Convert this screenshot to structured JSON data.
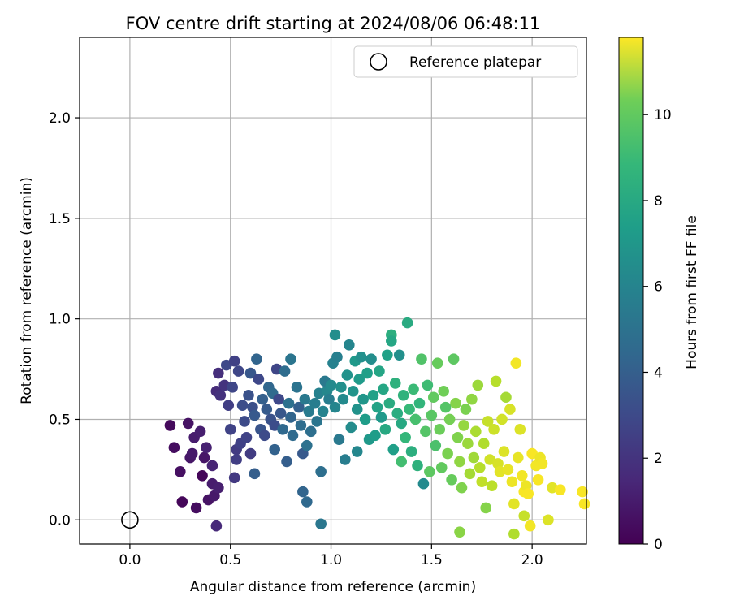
{
  "chart_data": {
    "type": "scatter",
    "title": "FOV centre drift starting at 2024/08/06 06:48:11",
    "xlabel": "Angular distance from reference (arcmin)",
    "ylabel": "Rotation from reference (arcmin)",
    "xlim": [
      -0.25,
      2.27
    ],
    "ylim": [
      -0.12,
      2.4
    ],
    "xticks": [
      "0.0",
      "0.5",
      "1.0",
      "1.5",
      "2.0"
    ],
    "yticks": [
      "0.0",
      "0.5",
      "1.0",
      "1.5",
      "2.0"
    ],
    "grid": true,
    "legend": {
      "position": "top-right",
      "entries": [
        "Reference platepar"
      ]
    },
    "colorbar": {
      "label": "Hours from first FF file",
      "min": 0,
      "max": 11.8,
      "ticks": [
        "0",
        "2",
        "4",
        "6",
        "8",
        "10"
      ],
      "colormap": "viridis"
    },
    "reference_point": {
      "x": 0.0,
      "y": 0.0
    },
    "points": [
      [
        0.2,
        0.47,
        0.3
      ],
      [
        0.22,
        0.36,
        0.4
      ],
      [
        0.25,
        0.24,
        0.5
      ],
      [
        0.26,
        0.09,
        0.2
      ],
      [
        0.29,
        0.48,
        0.6
      ],
      [
        0.3,
        0.31,
        0.7
      ],
      [
        0.31,
        0.33,
        0.8
      ],
      [
        0.32,
        0.41,
        0.9
      ],
      [
        0.33,
        0.06,
        0.4
      ],
      [
        0.35,
        0.44,
        1.0
      ],
      [
        0.36,
        0.22,
        0.2
      ],
      [
        0.37,
        0.31,
        0.7
      ],
      [
        0.38,
        0.36,
        1.1
      ],
      [
        0.39,
        0.1,
        0.6
      ],
      [
        0.41,
        0.27,
        1.2
      ],
      [
        0.41,
        0.18,
        0.9
      ],
      [
        0.42,
        0.12,
        0.8
      ],
      [
        0.43,
        0.64,
        1.5
      ],
      [
        0.43,
        -0.03,
        1.4
      ],
      [
        0.44,
        0.16,
        1.0
      ],
      [
        0.44,
        0.73,
        1.6
      ],
      [
        0.45,
        0.62,
        1.7
      ],
      [
        0.47,
        0.67,
        1.8
      ],
      [
        0.48,
        0.77,
        2.6
      ],
      [
        0.49,
        0.57,
        2.2
      ],
      [
        0.5,
        0.45,
        2.4
      ],
      [
        0.51,
        0.66,
        2.5
      ],
      [
        0.52,
        0.21,
        2.0
      ],
      [
        0.52,
        0.79,
        2.3
      ],
      [
        0.53,
        0.35,
        2.1
      ],
      [
        0.53,
        0.3,
        2.2
      ],
      [
        0.54,
        0.74,
        2.5
      ],
      [
        0.55,
        0.38,
        2.3
      ],
      [
        0.56,
        0.57,
        2.8
      ],
      [
        0.57,
        0.49,
        2.7
      ],
      [
        0.58,
        0.41,
        2.4
      ],
      [
        0.59,
        0.62,
        3.0
      ],
      [
        0.6,
        0.33,
        2.1
      ],
      [
        0.6,
        0.73,
        3.2
      ],
      [
        0.61,
        0.56,
        2.9
      ],
      [
        0.62,
        0.52,
        3.3
      ],
      [
        0.62,
        0.23,
        3.5
      ],
      [
        0.63,
        0.8,
        3.8
      ],
      [
        0.64,
        0.7,
        2.6
      ],
      [
        0.65,
        0.45,
        3.1
      ],
      [
        0.66,
        0.6,
        3.6
      ],
      [
        0.67,
        0.42,
        2.7
      ],
      [
        0.68,
        0.55,
        3.4
      ],
      [
        0.69,
        0.66,
        3.9
      ],
      [
        0.7,
        0.5,
        3.0
      ],
      [
        0.71,
        0.63,
        4.1
      ],
      [
        0.72,
        0.47,
        2.8
      ],
      [
        0.72,
        0.35,
        3.7
      ],
      [
        0.73,
        0.75,
        2.5
      ],
      [
        0.74,
        0.6,
        2.6
      ],
      [
        0.75,
        0.53,
        3.2
      ],
      [
        0.76,
        0.45,
        4.0
      ],
      [
        0.77,
        0.74,
        4.2
      ],
      [
        0.78,
        0.29,
        3.5
      ],
      [
        0.79,
        0.58,
        4.4
      ],
      [
        0.8,
        0.51,
        3.8
      ],
      [
        0.8,
        0.8,
        4.6
      ],
      [
        0.81,
        0.42,
        4.1
      ],
      [
        0.83,
        0.66,
        4.5
      ],
      [
        0.84,
        0.56,
        3.6
      ],
      [
        0.85,
        0.47,
        4.2
      ],
      [
        0.86,
        0.33,
        3.3
      ],
      [
        0.86,
        0.14,
        3.8
      ],
      [
        0.87,
        0.6,
        4.8
      ],
      [
        0.88,
        0.37,
        4.4
      ],
      [
        0.88,
        0.09,
        4.0
      ],
      [
        0.89,
        0.54,
        4.9
      ],
      [
        0.9,
        0.44,
        4.3
      ],
      [
        0.92,
        0.58,
        5.0
      ],
      [
        0.93,
        0.49,
        4.6
      ],
      [
        0.94,
        0.63,
        5.2
      ],
      [
        0.95,
        0.24,
        4.3
      ],
      [
        0.95,
        -0.02,
        4.7
      ],
      [
        0.96,
        0.54,
        5.3
      ],
      [
        0.97,
        0.69,
        4.8
      ],
      [
        0.98,
        0.64,
        5.5
      ],
      [
        0.99,
        0.6,
        5.0
      ],
      [
        1.0,
        0.67,
        5.6
      ],
      [
        1.01,
        0.78,
        5.2
      ],
      [
        1.02,
        0.92,
        5.8
      ],
      [
        1.02,
        0.56,
        5.4
      ],
      [
        1.03,
        0.81,
        5.1
      ],
      [
        1.04,
        0.4,
        4.8
      ],
      [
        1.05,
        0.66,
        5.9
      ],
      [
        1.06,
        0.6,
        5.6
      ],
      [
        1.07,
        0.3,
        5.0
      ],
      [
        1.08,
        0.72,
        6.0
      ],
      [
        1.09,
        0.87,
        5.4
      ],
      [
        1.1,
        0.46,
        5.7
      ],
      [
        1.11,
        0.64,
        6.1
      ],
      [
        1.12,
        0.79,
        6.3
      ],
      [
        1.13,
        0.34,
        5.5
      ],
      [
        1.13,
        0.55,
        6.0
      ],
      [
        1.14,
        0.7,
        6.4
      ],
      [
        1.15,
        0.81,
        5.9
      ],
      [
        1.16,
        0.6,
        6.2
      ],
      [
        1.17,
        0.5,
        6.5
      ],
      [
        1.18,
        0.73,
        6.6
      ],
      [
        1.19,
        0.4,
        6.3
      ],
      [
        1.2,
        0.8,
        5.8
      ],
      [
        1.21,
        0.62,
        6.7
      ],
      [
        1.22,
        0.42,
        6.5
      ],
      [
        1.23,
        0.56,
        6.8
      ],
      [
        1.24,
        0.74,
        6.9
      ],
      [
        1.25,
        0.51,
        6.3
      ],
      [
        1.26,
        0.65,
        7.0
      ],
      [
        1.27,
        0.45,
        7.1
      ],
      [
        1.28,
        0.82,
        6.7
      ],
      [
        1.29,
        0.58,
        7.2
      ],
      [
        1.3,
        0.92,
        7.4
      ],
      [
        1.3,
        0.89,
        7.0
      ],
      [
        1.31,
        0.35,
        6.6
      ],
      [
        1.32,
        0.68,
        7.5
      ],
      [
        1.33,
        0.53,
        7.3
      ],
      [
        1.34,
        0.82,
        5.9
      ],
      [
        1.35,
        0.29,
        8.2
      ],
      [
        1.35,
        0.48,
        7.1
      ],
      [
        1.36,
        0.62,
        7.6
      ],
      [
        1.37,
        0.41,
        7.8
      ],
      [
        1.38,
        0.98,
        7.2
      ],
      [
        1.39,
        0.55,
        7.9
      ],
      [
        1.4,
        0.34,
        7.4
      ],
      [
        1.41,
        0.65,
        8.0
      ],
      [
        1.42,
        0.5,
        8.3
      ],
      [
        1.43,
        0.27,
        7.5
      ],
      [
        1.44,
        0.58,
        7.7
      ],
      [
        1.45,
        0.8,
        8.5
      ],
      [
        1.46,
        0.18,
        5.6
      ],
      [
        1.47,
        0.44,
        8.6
      ],
      [
        1.48,
        0.67,
        8.1
      ],
      [
        1.49,
        0.24,
        8.8
      ],
      [
        1.5,
        0.52,
        8.7
      ],
      [
        1.51,
        0.61,
        8.9
      ],
      [
        1.52,
        0.37,
        8.4
      ],
      [
        1.53,
        0.78,
        9.0
      ],
      [
        1.54,
        0.45,
        9.1
      ],
      [
        1.55,
        0.26,
        8.9
      ],
      [
        1.56,
        0.64,
        9.2
      ],
      [
        1.57,
        0.56,
        8.6
      ],
      [
        1.58,
        0.33,
        9.4
      ],
      [
        1.59,
        0.5,
        9.3
      ],
      [
        1.6,
        0.2,
        9.0
      ],
      [
        1.61,
        0.8,
        8.8
      ],
      [
        1.62,
        0.58,
        9.6
      ],
      [
        1.63,
        0.41,
        9.5
      ],
      [
        1.64,
        -0.06,
        9.7
      ],
      [
        1.64,
        0.29,
        9.8
      ],
      [
        1.65,
        0.16,
        9.5
      ],
      [
        1.66,
        0.47,
        9.9
      ],
      [
        1.67,
        0.55,
        9.4
      ],
      [
        1.68,
        0.38,
        10.0
      ],
      [
        1.69,
        0.23,
        10.2
      ],
      [
        1.7,
        0.6,
        9.8
      ],
      [
        1.71,
        0.31,
        10.1
      ],
      [
        1.72,
        0.44,
        10.3
      ],
      [
        1.73,
        0.67,
        10.0
      ],
      [
        1.74,
        0.26,
        10.5
      ],
      [
        1.75,
        0.19,
        10.7
      ],
      [
        1.76,
        0.38,
        10.4
      ],
      [
        1.77,
        0.06,
        9.6
      ],
      [
        1.78,
        0.49,
        10.8
      ],
      [
        1.79,
        0.3,
        11.0
      ],
      [
        1.8,
        0.17,
        10.6
      ],
      [
        1.81,
        0.45,
        10.9
      ],
      [
        1.82,
        0.69,
        10.5
      ],
      [
        1.83,
        0.28,
        11.1
      ],
      [
        1.84,
        0.24,
        11.3
      ],
      [
        1.85,
        0.5,
        11.0
      ],
      [
        1.86,
        0.34,
        11.2
      ],
      [
        1.87,
        0.61,
        10.2
      ],
      [
        1.88,
        0.25,
        11.4
      ],
      [
        1.89,
        0.55,
        11.1
      ],
      [
        1.9,
        0.19,
        11.5
      ],
      [
        1.91,
        0.08,
        11.3
      ],
      [
        1.91,
        -0.07,
        10.4
      ],
      [
        1.92,
        0.78,
        11.6
      ],
      [
        1.93,
        0.31,
        11.4
      ],
      [
        1.94,
        0.45,
        11.2
      ],
      [
        1.95,
        0.22,
        11.6
      ],
      [
        1.96,
        0.02,
        10.8
      ],
      [
        1.96,
        0.14,
        11.7
      ],
      [
        1.97,
        0.17,
        11.5
      ],
      [
        1.98,
        0.13,
        11.7
      ],
      [
        1.99,
        -0.03,
        11.6
      ],
      [
        2.0,
        0.33,
        11.7
      ],
      [
        2.02,
        0.27,
        11.6
      ],
      [
        2.03,
        0.2,
        11.7
      ],
      [
        2.04,
        0.31,
        11.5
      ],
      [
        2.05,
        0.28,
        11.6
      ],
      [
        2.08,
        0.0,
        11.2
      ],
      [
        2.1,
        0.16,
        11.3
      ],
      [
        2.14,
        0.15,
        11.7
      ],
      [
        2.25,
        0.14,
        11.7
      ],
      [
        2.26,
        0.08,
        11.7
      ]
    ]
  }
}
